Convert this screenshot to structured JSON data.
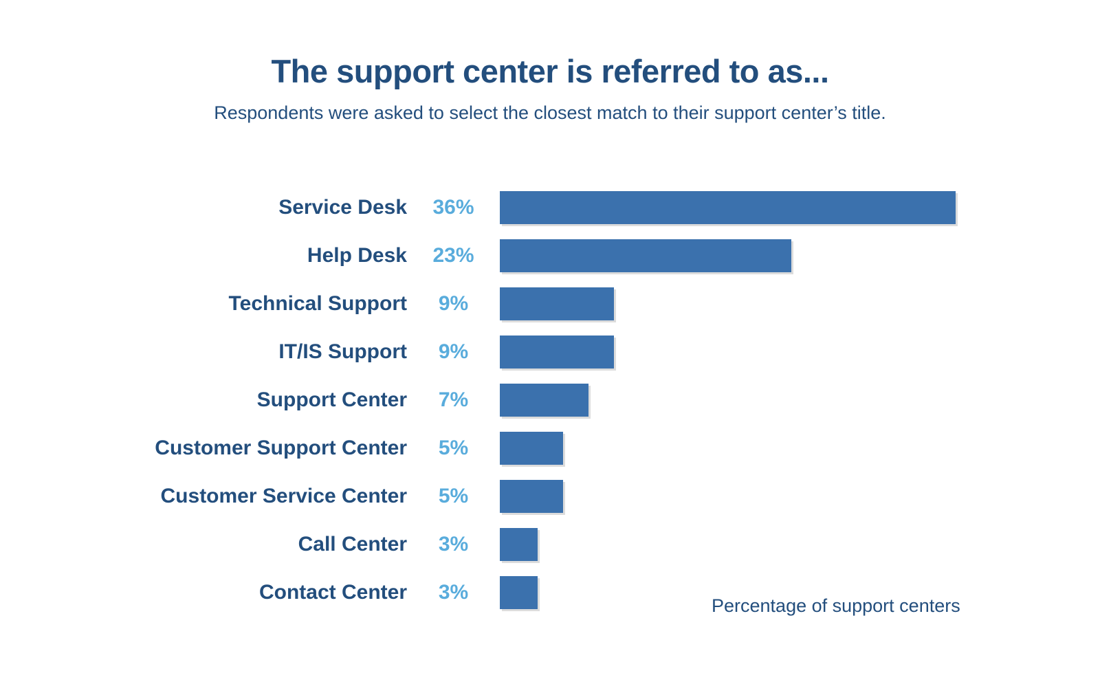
{
  "header": {
    "title": "The support center is referred to as...",
    "subtitle": "Respondents were asked to select the closest match to their support center’s title."
  },
  "footer": {
    "note": "Percentage of support centers"
  },
  "chart_data": {
    "type": "bar",
    "orientation": "horizontal",
    "title": "The support center is referred to as...",
    "subtitle": "Respondents were asked to select the closest match to their support center’s title.",
    "xlabel": "Percentage of support centers",
    "ylabel": "",
    "categories": [
      "Service Desk",
      "Help Desk",
      "Technical Support",
      "IT/IS Support",
      "Support Center",
      "Customer Support Center",
      "Customer Service Center",
      "Call Center",
      "Contact Center"
    ],
    "values": [
      36,
      23,
      9,
      9,
      7,
      5,
      5,
      3,
      3
    ],
    "value_labels": [
      "36%",
      "23%",
      "9%",
      "9%",
      "7%",
      "5%",
      "5%",
      "3%",
      "3%"
    ],
    "xlim": [
      0,
      36
    ],
    "grid": false,
    "legend": false,
    "colors": {
      "bar": "#3b71ad",
      "category_label": "#234e7d",
      "value_label": "#59acdc",
      "title": "#234e7d",
      "background": "#ffffff"
    }
  }
}
